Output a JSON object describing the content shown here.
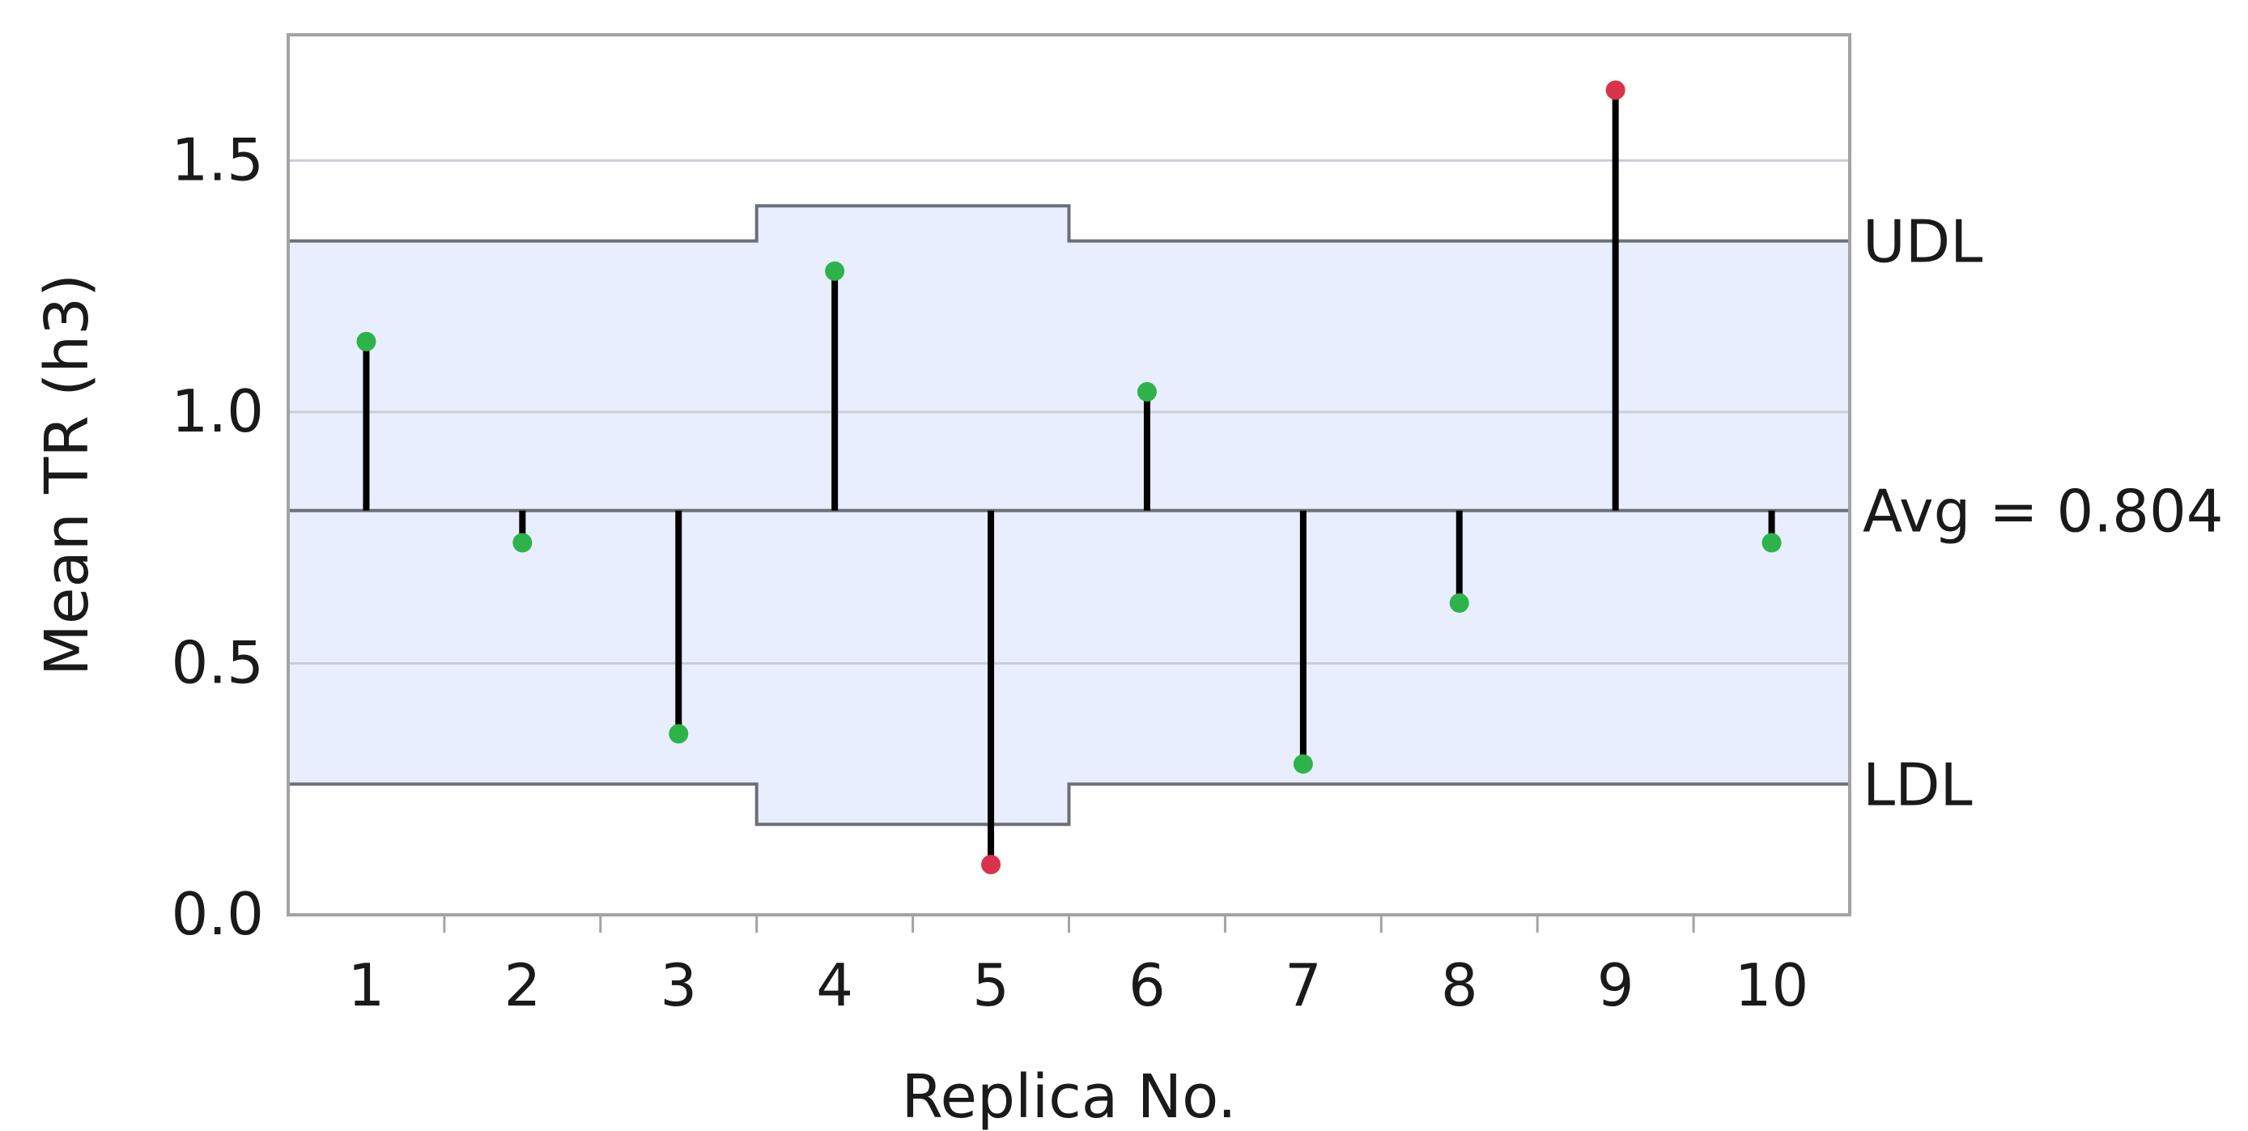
{
  "chart_data": {
    "type": "scatter",
    "subtype": "analysis-of-means",
    "xlabel": "Replica No.",
    "ylabel": "Mean TR (h3)",
    "ylim": [
      0,
      1.75
    ],
    "yticks": [
      {
        "value": 0.0,
        "label": "0.0"
      },
      {
        "value": 0.5,
        "label": "0.5"
      },
      {
        "value": 1.0,
        "label": "1.0"
      },
      {
        "value": 1.5,
        "label": "1.5"
      }
    ],
    "grid": "horizontal",
    "categories": [
      "1",
      "2",
      "3",
      "4",
      "5",
      "6",
      "7",
      "8",
      "9",
      "10"
    ],
    "values": [
      1.14,
      0.74,
      0.36,
      1.28,
      0.1,
      1.04,
      0.3,
      0.62,
      1.64,
      0.74
    ],
    "point_status": [
      "in",
      "in",
      "in",
      "in",
      "out",
      "in",
      "in",
      "in",
      "out",
      "in"
    ],
    "average": 0.804,
    "average_label": "Avg = 0.804",
    "upper_limit_label": "UDL",
    "lower_limit_label": "LDL",
    "upper_limits": [
      1.34,
      1.34,
      1.34,
      1.41,
      1.41,
      1.34,
      1.34,
      1.34,
      1.34,
      1.34
    ],
    "lower_limits": [
      0.26,
      0.26,
      0.26,
      0.18,
      0.18,
      0.26,
      0.26,
      0.26,
      0.26,
      0.26
    ],
    "colors": {
      "in_limits": "#2eb24a",
      "out_of_limits": "#d9324a",
      "band": "#e8eefd",
      "limit_line": "#6b6f78",
      "stem": "#000000",
      "grid": "#c9cdd6",
      "frame": "#a3a3a3"
    }
  }
}
